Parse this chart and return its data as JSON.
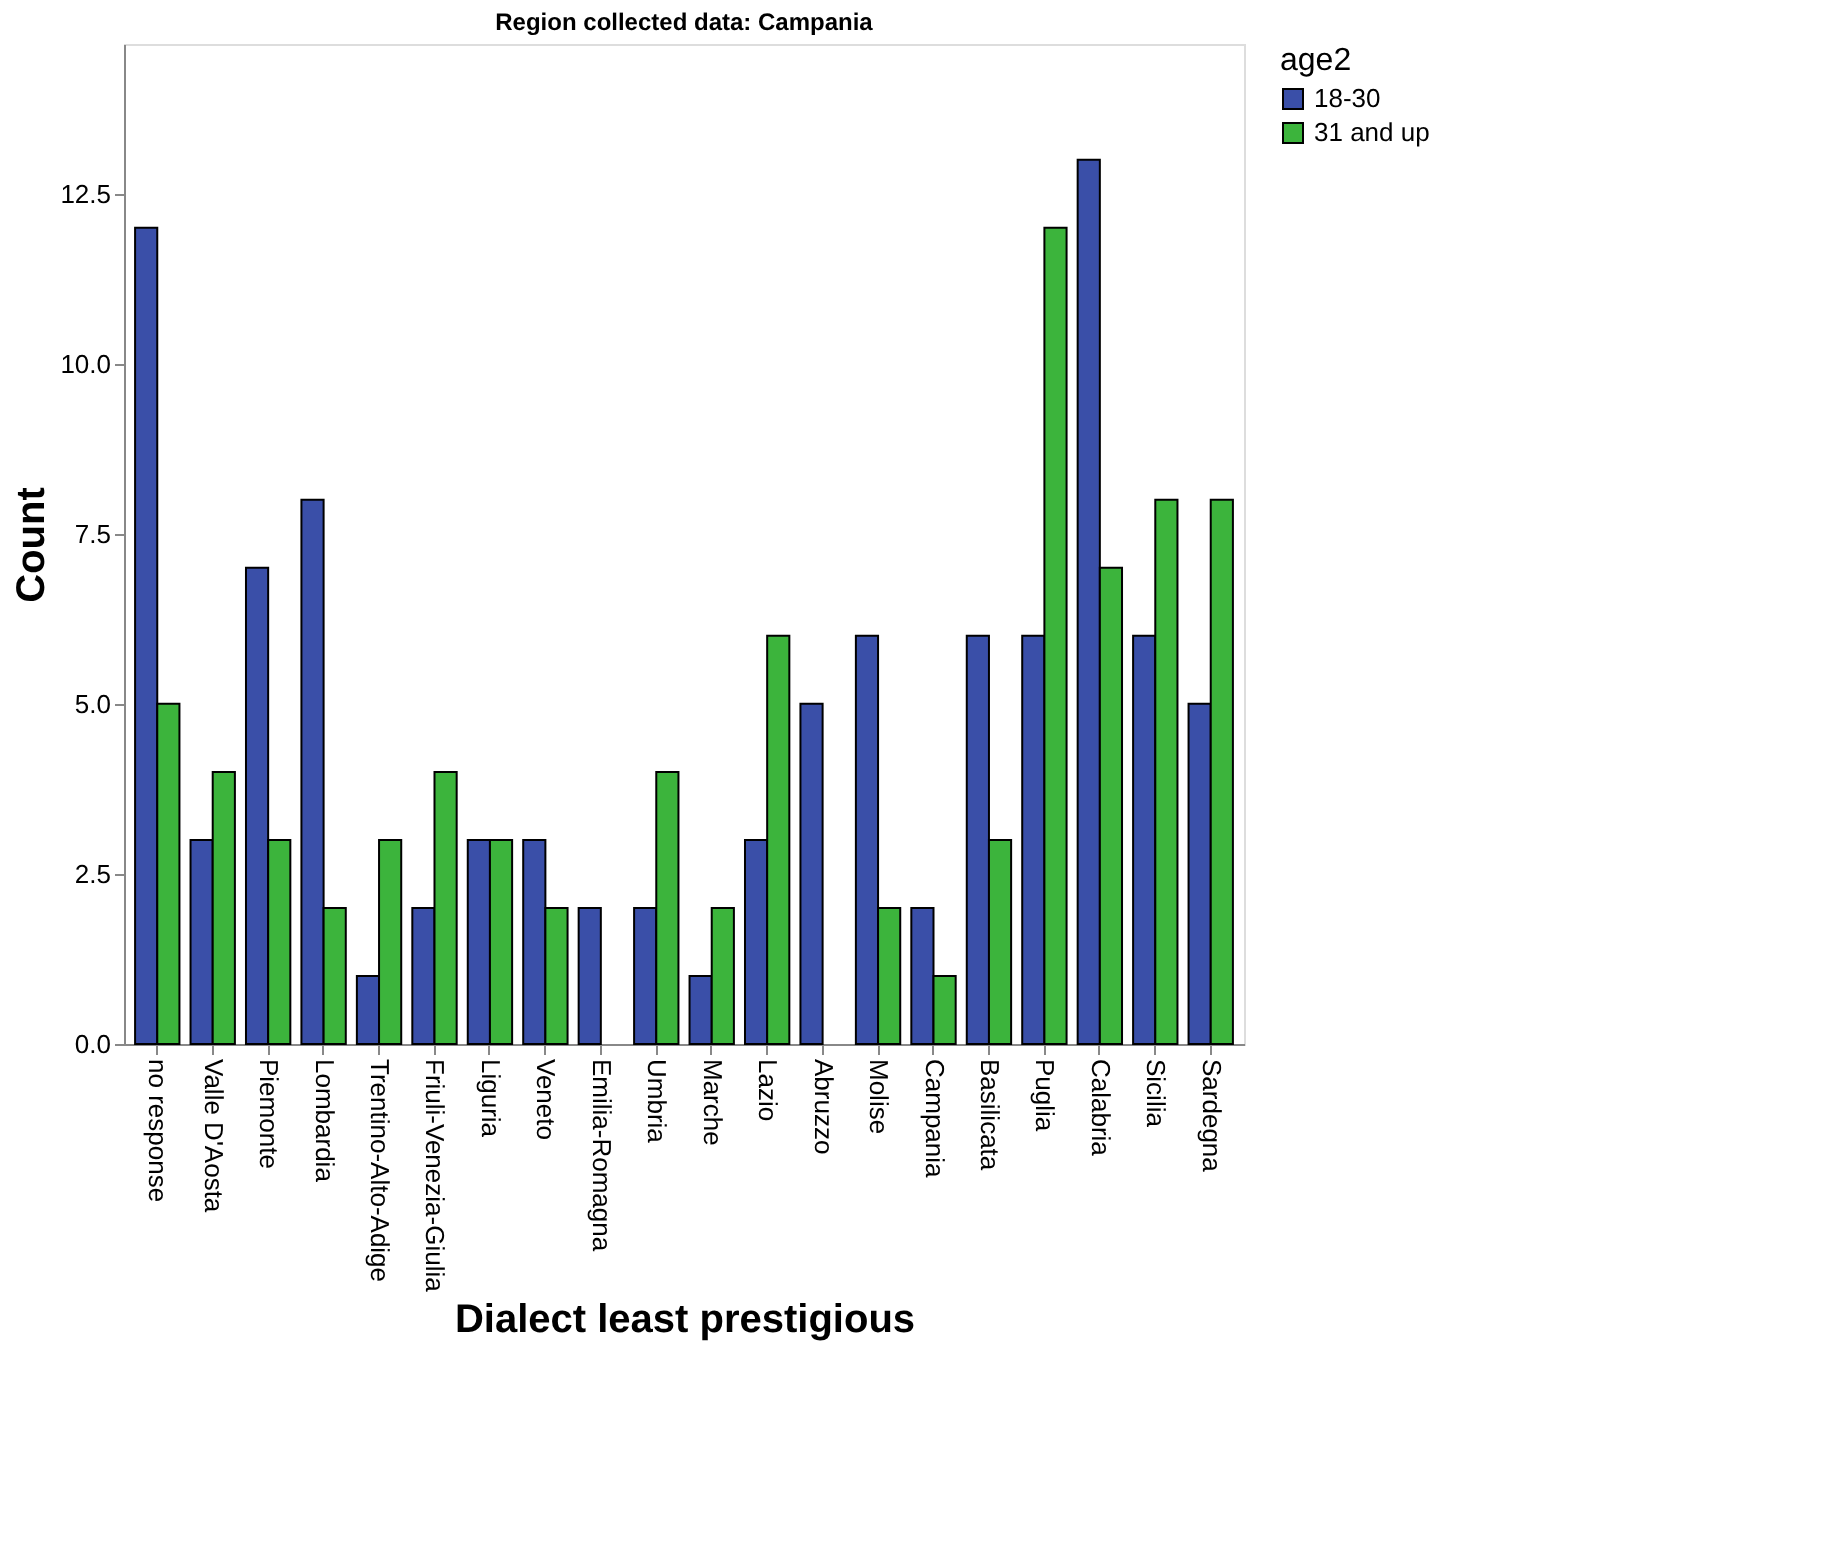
{
  "chart_data": {
    "type": "bar",
    "title": "Region collected data: Campania",
    "xlabel": "Dialect least prestigious",
    "ylabel": "Count",
    "legend_title": "age2",
    "categories": [
      "no response",
      "Valle D'Aosta",
      "Piemonte",
      "Lombardia",
      "Trentino-Alto-Adige",
      "Friuli-Venezia-Giulia",
      "Liguria",
      "Veneto",
      "Emilia-Romagna",
      "Umbria",
      "Marche",
      "Lazio",
      "Abruzzo",
      "Molise",
      "Campania",
      "Basilicata",
      "Puglia",
      "Calabria",
      "Sicilia",
      "Sardegna"
    ],
    "series": [
      {
        "name": "18-30",
        "color": "#3a4fa8",
        "values": [
          12,
          3,
          7,
          8,
          1,
          2,
          3,
          3,
          2,
          2,
          1,
          3,
          5,
          6,
          2,
          6,
          6,
          13,
          6,
          5
        ]
      },
      {
        "name": "31 and up",
        "color": "#3cb43c",
        "values": [
          5,
          4,
          3,
          2,
          3,
          4,
          3,
          2,
          null,
          4,
          2,
          6,
          null,
          2,
          1,
          3,
          12,
          7,
          8,
          8
        ]
      }
    ],
    "ylim": [
      0,
      14.7
    ],
    "yticks": [
      {
        "value": 0,
        "label": "0.0"
      },
      2.5,
      {
        "value": 5,
        "label": "5.0"
      },
      7.5,
      {
        "value": 10,
        "label": "10.0"
      },
      12.5
    ],
    "grid": false,
    "legend": "top right"
  }
}
